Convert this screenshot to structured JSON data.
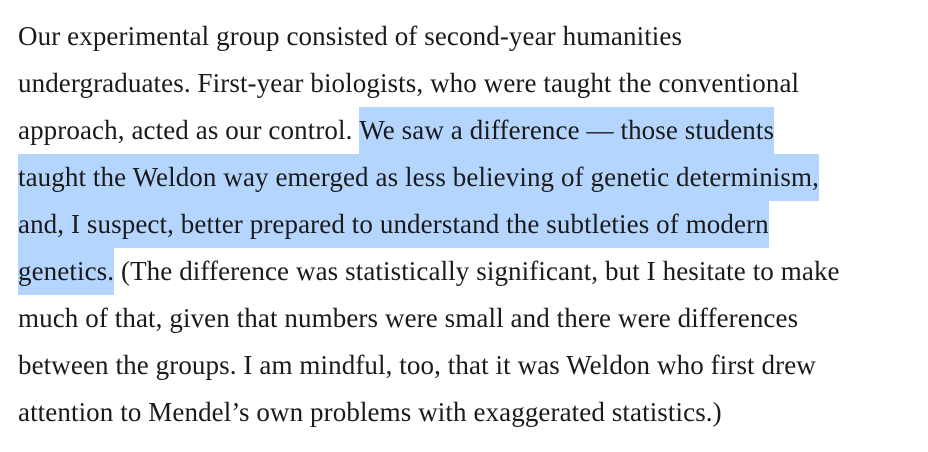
{
  "highlight_color": "#b4d5fe",
  "paragraph": {
    "lines": [
      {
        "before": "Our experimental group consisted of second-year humanities",
        "selected": "",
        "after": ""
      },
      {
        "before": "undergraduates. First-year biologists, who were taught the conventional",
        "selected": "",
        "after": ""
      },
      {
        "before": "approach, acted as our control. ",
        "selected": "We saw a difference — those students",
        "after": ""
      },
      {
        "before": "",
        "selected": "taught the Weldon way emerged as less believing of genetic determinism,",
        "after": ""
      },
      {
        "before": "",
        "selected": "and, I suspect, better prepared to understand the subtleties of modern",
        "after": ""
      },
      {
        "before": "",
        "selected": "genetics.",
        "after": " (The difference was statistically significant, but I hesitate to make"
      },
      {
        "before": "much of that, given that numbers were small and there were differences",
        "selected": "",
        "after": ""
      },
      {
        "before": "between the groups. I am mindful, too, that it was Weldon who first drew",
        "selected": "",
        "after": ""
      },
      {
        "before": "attention to Mendel’s own problems with exaggerated statistics.)",
        "selected": "",
        "after": ""
      }
    ]
  }
}
